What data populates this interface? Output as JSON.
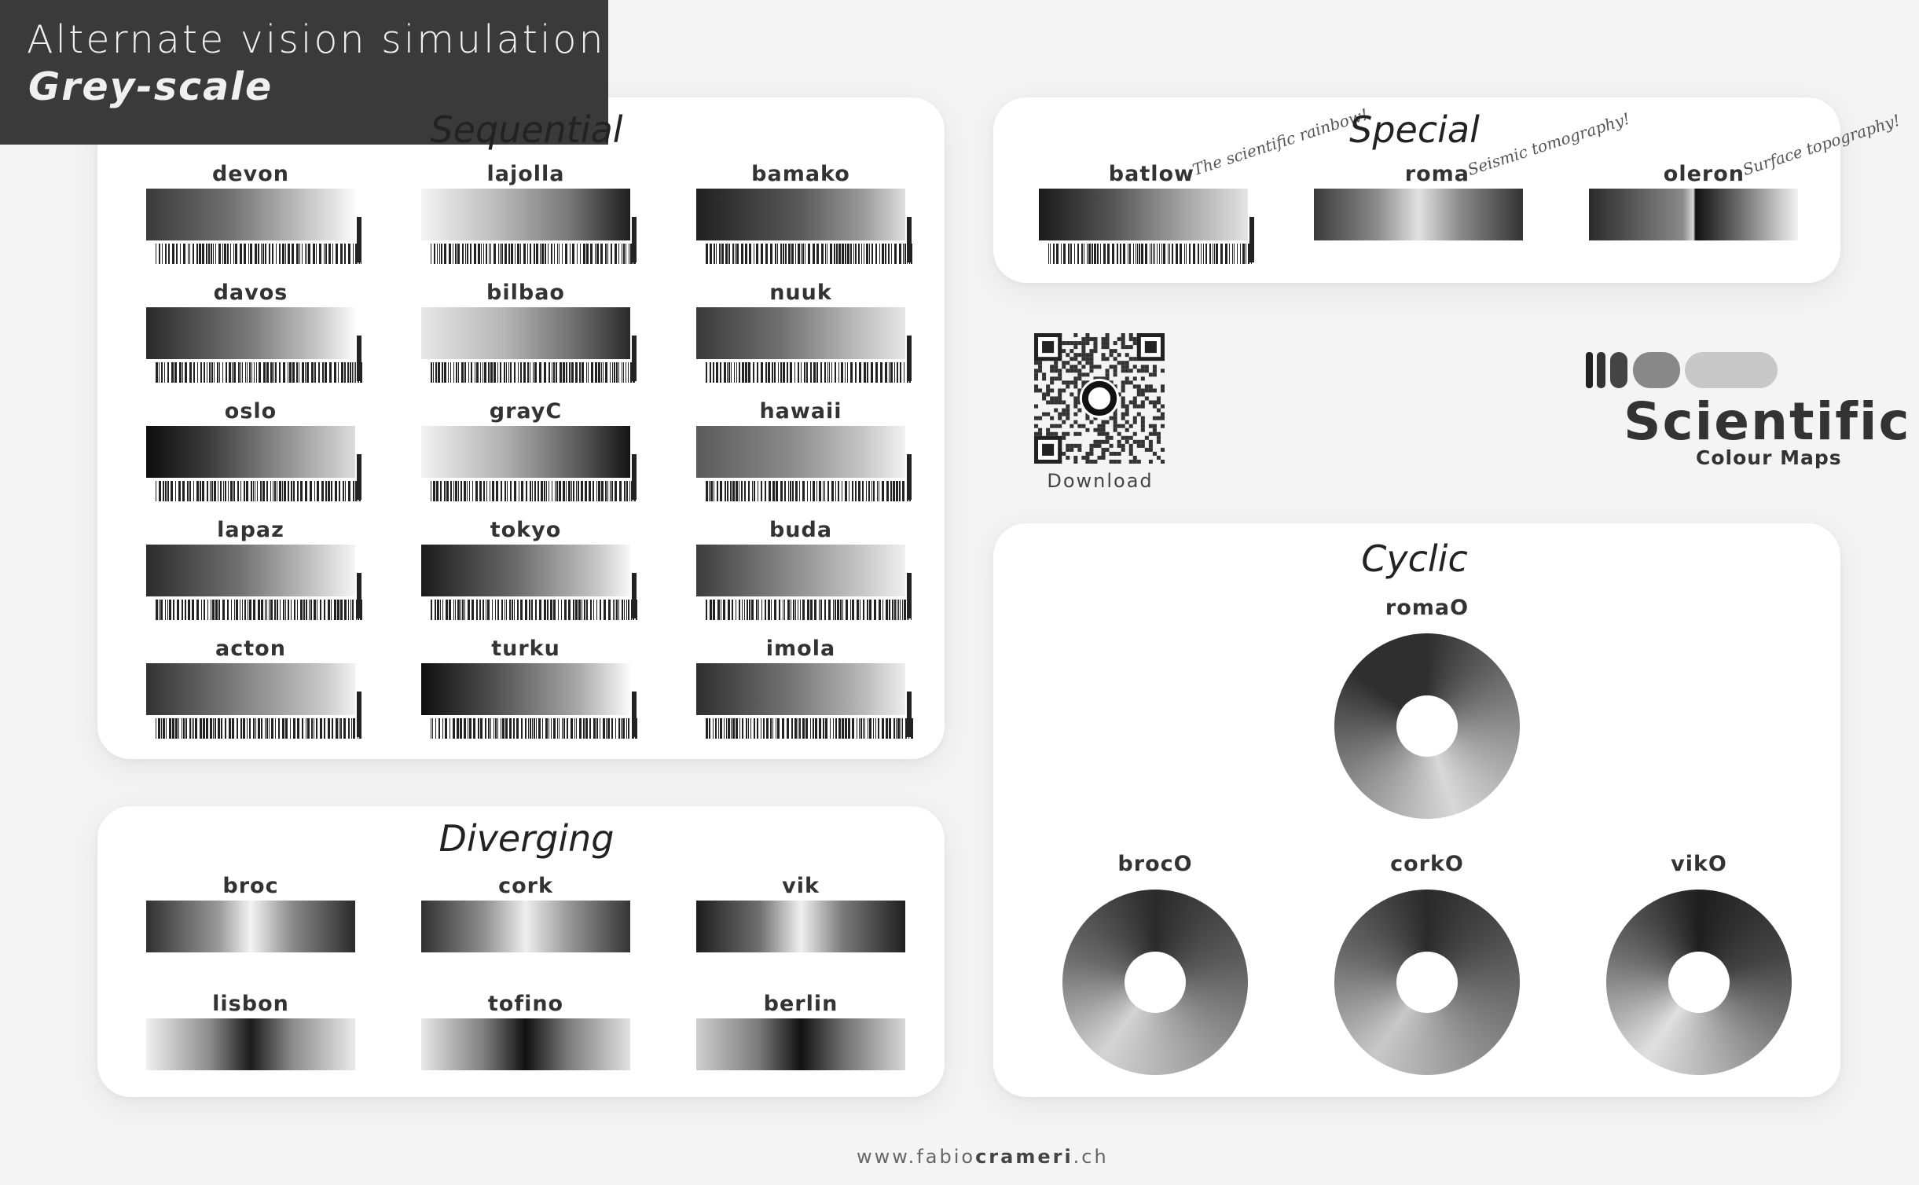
{
  "title": {
    "line1": "Alternate vision simulation",
    "line2": "Grey-scale"
  },
  "sections": {
    "sequential": "Sequential",
    "special": "Special",
    "diverging": "Diverging",
    "cyclic": "Cyclic"
  },
  "sequential": [
    "devon",
    "lajolla",
    "bamako",
    "davos",
    "bilbao",
    "nuuk",
    "oslo",
    "grayC",
    "hawaii",
    "lapaz",
    "tokyo",
    "buda",
    "acton",
    "turku",
    "imola"
  ],
  "diverging": [
    "broc",
    "cork",
    "vik",
    "lisbon",
    "tofino",
    "berlin"
  ],
  "special": [
    {
      "name": "batlow",
      "slogan": "The scientific rainbow!"
    },
    {
      "name": "roma",
      "slogan": "Seismic tomography!"
    },
    {
      "name": "oleron",
      "slogan": "Surface topography!"
    }
  ],
  "cyclic": [
    "romaO",
    "brocO",
    "corkO",
    "vikO"
  ],
  "qr": {
    "label": "Download"
  },
  "logo": {
    "title": "Scientific",
    "subtitle": "Colour Maps"
  },
  "footer": {
    "pre": "www.fabio",
    "bold": "crameri",
    "post": ".ch"
  }
}
